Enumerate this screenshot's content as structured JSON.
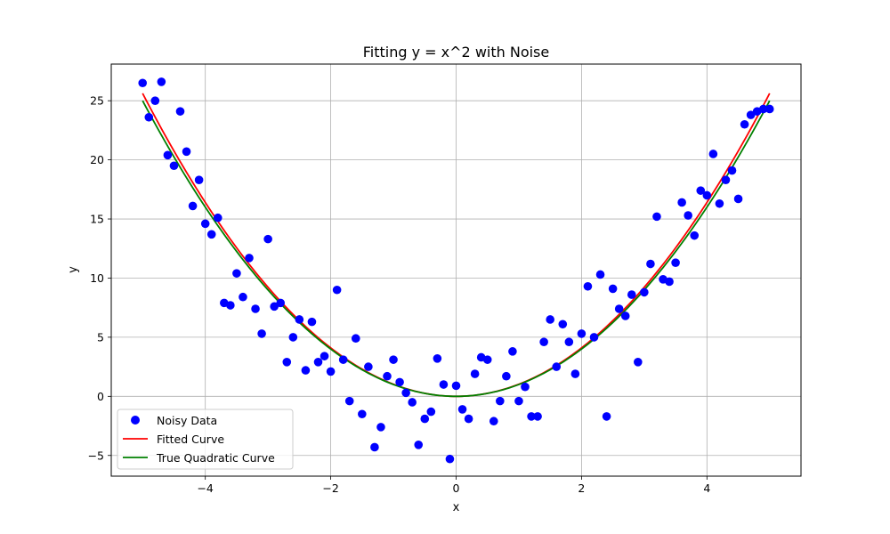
{
  "chart_data": {
    "type": "scatter",
    "title": "Fitting y = x^2 with Noise",
    "xlabel": "x",
    "ylabel": "y",
    "xlim": [
      -5.5,
      5.5
    ],
    "ylim": [
      -6.75,
      28.1
    ],
    "xticks": [
      -4,
      -2,
      0,
      2,
      4
    ],
    "xtick_labels": [
      "−4",
      "−2",
      "0",
      "2",
      "4"
    ],
    "yticks": [
      -5,
      0,
      5,
      10,
      15,
      20,
      25
    ],
    "ytick_labels": [
      "−5",
      "0",
      "5",
      "10",
      "15",
      "20",
      "25"
    ],
    "grid": true,
    "legend_position": "lower-left",
    "series": [
      {
        "name": "Noisy Data",
        "kind": "scatter",
        "color": "#0000ff",
        "x": [
          -5.0,
          -4.9,
          -4.8,
          -4.7,
          -4.6,
          -4.5,
          -4.4,
          -4.3,
          -4.2,
          -4.1,
          -4.0,
          -3.9,
          -3.8,
          -3.7,
          -3.6,
          -3.5,
          -3.4,
          -3.3,
          -3.2,
          -3.1,
          -3.0,
          -2.9,
          -2.8,
          -2.7,
          -2.6,
          -2.5,
          -2.4,
          -2.3,
          -2.2,
          -2.1,
          -2.0,
          -1.9,
          -1.8,
          -1.7,
          -1.6,
          -1.5,
          -1.4,
          -1.3,
          -1.2,
          -1.1,
          -1.0,
          -0.9,
          -0.8,
          -0.7,
          -0.6,
          -0.5,
          -0.4,
          -0.3,
          -0.2,
          -0.1,
          0.0,
          0.1,
          0.2,
          0.3,
          0.4,
          0.5,
          0.6,
          0.7,
          0.8,
          0.9,
          1.0,
          1.1,
          1.2,
          1.3,
          1.4,
          1.5,
          1.6,
          1.7,
          1.8,
          1.9,
          2.0,
          2.1,
          2.2,
          2.3,
          2.4,
          2.5,
          2.6,
          2.7,
          2.8,
          2.9,
          3.0,
          3.1,
          3.2,
          3.3,
          3.4,
          3.5,
          3.6,
          3.7,
          3.8,
          3.9,
          4.0,
          4.1,
          4.2,
          4.3,
          4.4,
          4.5,
          4.6,
          4.7,
          4.8,
          4.9,
          5.0
        ],
        "y": [
          26.5,
          23.6,
          25.0,
          26.6,
          20.4,
          19.5,
          24.1,
          20.7,
          16.1,
          18.3,
          14.6,
          13.7,
          15.1,
          7.9,
          7.7,
          10.4,
          8.4,
          11.7,
          7.4,
          5.3,
          13.3,
          7.6,
          7.9,
          2.9,
          5.0,
          6.5,
          2.2,
          6.3,
          2.9,
          3.4,
          2.1,
          9.0,
          3.1,
          -0.4,
          4.9,
          -1.5,
          2.5,
          -4.3,
          -2.6,
          1.7,
          3.1,
          1.2,
          0.3,
          -0.5,
          -4.1,
          -1.9,
          -1.3,
          3.2,
          1.0,
          -5.3,
          0.9,
          -1.1,
          -1.9,
          1.9,
          3.3,
          3.1,
          -2.1,
          -0.4,
          1.7,
          3.8,
          -0.4,
          0.8,
          -1.7,
          -1.7,
          4.6,
          6.5,
          2.5,
          6.1,
          4.6,
          1.9,
          5.3,
          9.3,
          5.0,
          10.3,
          -1.7,
          9.1,
          7.4,
          6.8,
          8.6,
          2.9,
          8.8,
          11.2,
          15.2,
          9.9,
          9.7,
          11.3,
          16.4,
          15.3,
          13.6,
          17.4,
          17.0,
          20.5,
          16.3,
          18.3,
          19.1,
          16.7,
          23.0,
          23.8,
          24.1,
          24.3,
          24.3
        ]
      },
      {
        "name": "Fitted Curve",
        "kind": "line",
        "color": "#ff0000",
        "coefficients": [
          1.025,
          0.0,
          0.0
        ]
      },
      {
        "name": "True Quadratic Curve",
        "kind": "line",
        "color": "#008000",
        "coefficients": [
          1.0,
          0.0,
          0.0
        ]
      }
    ]
  }
}
